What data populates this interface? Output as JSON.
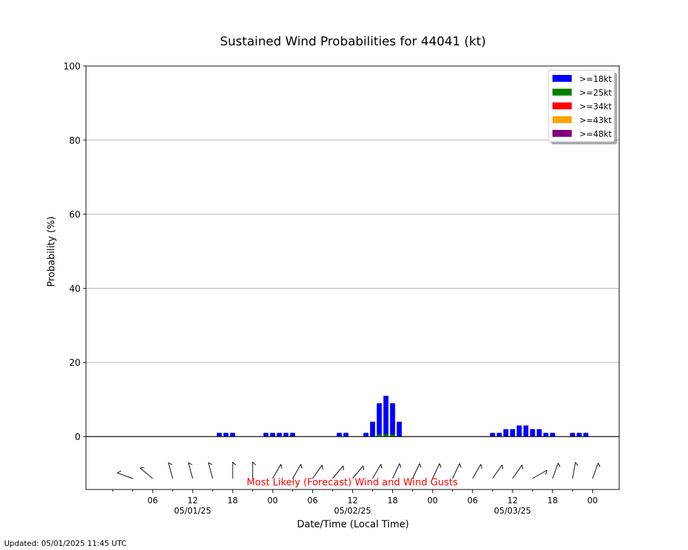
{
  "chart_data": {
    "type": "bar",
    "title": "Sustained Wind Probabilities for 44041 (kt)",
    "xlabel": "Date/Time (Local Time)",
    "ylabel": "Probability (%)",
    "ylim": [
      0,
      100
    ],
    "yticks": [
      "0",
      "20",
      "40",
      "60",
      "80",
      "100"
    ],
    "ytick_values": [
      0,
      20,
      40,
      60,
      80,
      100
    ],
    "grid": "horizontal",
    "legend_position": "top-right",
    "hour_step": 3,
    "x_hour_range": [
      -4,
      76
    ],
    "x_tick_hours": [
      6,
      12,
      18,
      24,
      30,
      36,
      42,
      48,
      54,
      60,
      66,
      72
    ],
    "x_tick_labels": [
      "06",
      "12",
      "18",
      "00",
      "06",
      "12",
      "18",
      "00",
      "06",
      "12",
      "18",
      "00"
    ],
    "date_labels": [
      {
        "hour": 12,
        "text": "05/01/25"
      },
      {
        "hour": 36,
        "text": "05/02/25"
      },
      {
        "hour": 60,
        "text": "05/03/25"
      }
    ],
    "series": [
      {
        "name": ">=18kt",
        "color": "#0000ff",
        "points": [
          {
            "hour": 16,
            "value": 1
          },
          {
            "hour": 17,
            "value": 1
          },
          {
            "hour": 18,
            "value": 1
          },
          {
            "hour": 23,
            "value": 1
          },
          {
            "hour": 24,
            "value": 1
          },
          {
            "hour": 25,
            "value": 1
          },
          {
            "hour": 26,
            "value": 1
          },
          {
            "hour": 27,
            "value": 1
          },
          {
            "hour": 34,
            "value": 1
          },
          {
            "hour": 35,
            "value": 1
          },
          {
            "hour": 38,
            "value": 1
          },
          {
            "hour": 39,
            "value": 4
          },
          {
            "hour": 40,
            "value": 9
          },
          {
            "hour": 41,
            "value": 11
          },
          {
            "hour": 42,
            "value": 9
          },
          {
            "hour": 43,
            "value": 4
          },
          {
            "hour": 57,
            "value": 1
          },
          {
            "hour": 58,
            "value": 1
          },
          {
            "hour": 59,
            "value": 2
          },
          {
            "hour": 60,
            "value": 2
          },
          {
            "hour": 61,
            "value": 3
          },
          {
            "hour": 62,
            "value": 3
          },
          {
            "hour": 63,
            "value": 2
          },
          {
            "hour": 64,
            "value": 2
          },
          {
            "hour": 65,
            "value": 1
          },
          {
            "hour": 66,
            "value": 1
          },
          {
            "hour": 69,
            "value": 1
          },
          {
            "hour": 70,
            "value": 1
          },
          {
            "hour": 71,
            "value": 1
          }
        ]
      },
      {
        "name": ">=25kt",
        "color": "#008000",
        "points": [
          {
            "hour": 40,
            "value": 0.6
          },
          {
            "hour": 41,
            "value": 0.6
          },
          {
            "hour": 42,
            "value": 0.6
          }
        ]
      },
      {
        "name": ">=34kt",
        "color": "#ff0000",
        "points": []
      },
      {
        "name": ">=43kt",
        "color": "#ffa500",
        "points": []
      },
      {
        "name": ">=48kt",
        "color": "#800080",
        "points": []
      }
    ],
    "wind_panel_label": "Most Likely (Forecast) Wind and Wind Gusts",
    "wind_barbs": [
      {
        "hour": 3,
        "dir": 290
      },
      {
        "hour": 6,
        "dir": 310
      },
      {
        "hour": 9,
        "dir": 345
      },
      {
        "hour": 12,
        "dir": 345
      },
      {
        "hour": 15,
        "dir": 345
      },
      {
        "hour": 18,
        "dir": 0
      },
      {
        "hour": 21,
        "dir": 0
      },
      {
        "hour": 24,
        "dir": 30
      },
      {
        "hour": 27,
        "dir": 30
      },
      {
        "hour": 30,
        "dir": 35
      },
      {
        "hour": 33,
        "dir": 40
      },
      {
        "hour": 36,
        "dir": 40
      },
      {
        "hour": 39,
        "dir": 30
      },
      {
        "hour": 42,
        "dir": 25
      },
      {
        "hour": 45,
        "dir": 25
      },
      {
        "hour": 48,
        "dir": 25
      },
      {
        "hour": 51,
        "dir": 25
      },
      {
        "hour": 54,
        "dir": 30
      },
      {
        "hour": 57,
        "dir": 35
      },
      {
        "hour": 60,
        "dir": 35
      },
      {
        "hour": 63,
        "dir": 60
      },
      {
        "hour": 66,
        "dir": 20
      },
      {
        "hour": 69,
        "dir": 10
      },
      {
        "hour": 72,
        "dir": 20
      }
    ]
  },
  "footer": {
    "updated": "Updated: 05/01/2025 11:45 UTC"
  }
}
